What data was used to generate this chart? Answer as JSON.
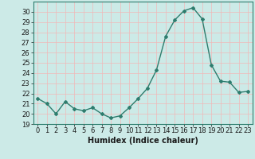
{
  "x": [
    0,
    1,
    2,
    3,
    4,
    5,
    6,
    7,
    8,
    9,
    10,
    11,
    12,
    13,
    14,
    15,
    16,
    17,
    18,
    19,
    20,
    21,
    22,
    23
  ],
  "y": [
    21.5,
    21.0,
    20.0,
    21.2,
    20.5,
    20.3,
    20.6,
    20.0,
    19.6,
    19.8,
    20.6,
    21.5,
    22.5,
    24.3,
    27.6,
    29.2,
    30.1,
    30.4,
    29.3,
    24.8,
    23.2,
    23.1,
    22.1,
    22.2
  ],
  "line_color": "#2e7d6e",
  "marker": "D",
  "marker_size": 2.0,
  "bg_color": "#cceae7",
  "grid_color_major": "#f0b8b8",
  "grid_color_minor": "#cde8e5",
  "axis_color": "#2e7d6e",
  "xlabel": "Humidex (Indice chaleur)",
  "xlabel_fontsize": 7,
  "tick_fontsize": 6,
  "ylim": [
    19,
    31
  ],
  "yticks": [
    19,
    20,
    21,
    22,
    23,
    24,
    25,
    26,
    27,
    28,
    29,
    30
  ],
  "xlim": [
    -0.5,
    23.5
  ],
  "xticks": [
    0,
    1,
    2,
    3,
    4,
    5,
    6,
    7,
    8,
    9,
    10,
    11,
    12,
    13,
    14,
    15,
    16,
    17,
    18,
    19,
    20,
    21,
    22,
    23
  ]
}
